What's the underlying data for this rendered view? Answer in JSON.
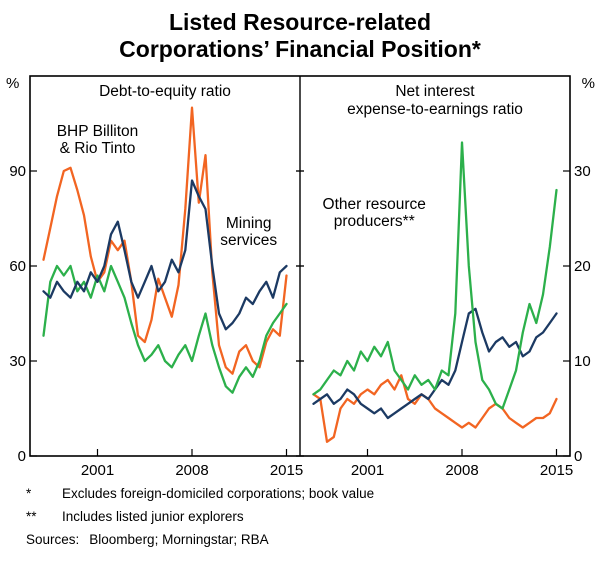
{
  "title": {
    "line1": "Listed Resource-related",
    "line2": "Corporations’ Financial Position*"
  },
  "footnotes": [
    {
      "marker": "*",
      "text": "Excludes foreign-domiciled corporations; book value"
    },
    {
      "marker": "**",
      "text": "Includes listed junior explorers"
    }
  ],
  "sources": {
    "label": "Sources:",
    "text": "Bloomberg; Morningstar; RBA"
  },
  "chart_data": {
    "type": "line",
    "x_domain": [
      1996,
      2016
    ],
    "x_ticks": [
      2001,
      2008,
      2015
    ],
    "x": [
      1997,
      1997.5,
      1998,
      1998.5,
      1999,
      1999.5,
      2000,
      2000.5,
      2001,
      2001.5,
      2002,
      2002.5,
      2003,
      2003.5,
      2004,
      2004.5,
      2005,
      2005.5,
      2006,
      2006.5,
      2007,
      2007.5,
      2008,
      2008.5,
      2009,
      2009.5,
      2010,
      2010.5,
      2011,
      2011.5,
      2012,
      2012.5,
      2013,
      2013.5,
      2014,
      2014.5,
      2015
    ],
    "panels": [
      {
        "title": "Debt-to-equity ratio",
        "title_lines": [
          "Debt-to-equity ratio"
        ],
        "ylabel": "%",
        "axis_side": "left",
        "ylim": [
          0,
          120
        ],
        "yticks": [
          0,
          30,
          60,
          90
        ],
        "series": [
          {
            "name": "BHP Billiton & Rio Tinto",
            "color": "#f26522",
            "values": [
              62,
              72,
              82,
              90,
              91,
              84,
              76,
              63,
              55,
              58,
              68,
              65,
              68,
              55,
              38,
              36,
              43,
              56,
              50,
              44,
              54,
              78,
              110,
              80,
              95,
              58,
              35,
              28,
              26,
              33,
              35,
              30,
              28,
              36,
              40,
              38,
              57
            ]
          },
          {
            "name": "Other resource producers",
            "color": "#2cb04b",
            "values": [
              38,
              55,
              60,
              57,
              60,
              52,
              55,
              50,
              57,
              52,
              60,
              55,
              50,
              42,
              35,
              30,
              32,
              35,
              30,
              28,
              32,
              35,
              30,
              38,
              45,
              35,
              28,
              22,
              20,
              25,
              28,
              25,
              30,
              38,
              42,
              45,
              48
            ]
          },
          {
            "name": "Mining services",
            "color": "#1c3a63",
            "values": [
              52,
              50,
              55,
              52,
              50,
              55,
              52,
              58,
              55,
              60,
              70,
              74,
              65,
              55,
              50,
              55,
              60,
              52,
              55,
              62,
              58,
              65,
              87,
              82,
              78,
              60,
              45,
              40,
              42,
              45,
              50,
              48,
              52,
              55,
              50,
              58,
              60
            ]
          }
        ],
        "annotations": [
          {
            "lines": [
              "BHP Billiton",
              "& Rio Tinto"
            ],
            "x": 2001,
            "y": 101,
            "color": "#f26522"
          },
          {
            "lines": [
              "Mining",
              "services"
            ],
            "x": 2012.2,
            "y": 72,
            "color": "#1c3a63"
          }
        ]
      },
      {
        "title": "Net interest expense-to-earnings ratio",
        "title_lines": [
          "Net interest",
          "expense-to-earnings ratio"
        ],
        "ylabel": "%",
        "axis_side": "right",
        "ylim": [
          0,
          40
        ],
        "yticks": [
          0,
          10,
          20,
          30
        ],
        "series": [
          {
            "name": "BHP Billiton & Rio Tinto",
            "color": "#f26522",
            "values": [
              6.5,
              6,
              1.5,
              2,
              5,
              6,
              5.5,
              6.5,
              7,
              6.5,
              7.5,
              8,
              7,
              8.5,
              6,
              5.5,
              6.5,
              6,
              5,
              4.5,
              4,
              3.5,
              3,
              3.5,
              3,
              4,
              5,
              5.5,
              5,
              4,
              3.5,
              3,
              3.5,
              4,
              4,
              4.5,
              6
            ]
          },
          {
            "name": "Mining services",
            "color": "#1c3a63",
            "values": [
              5.5,
              6,
              6.5,
              5.5,
              6,
              7,
              6.5,
              5.5,
              5,
              4.5,
              5,
              4,
              4.5,
              5,
              5.5,
              6,
              6.5,
              6,
              7,
              8,
              7.5,
              9,
              12,
              15,
              15.5,
              13,
              11,
              12,
              12.5,
              11.5,
              12,
              10.5,
              11,
              12.5,
              13,
              14,
              15
            ]
          },
          {
            "name": "Other resource producers",
            "color": "#2cb04b",
            "values": [
              6.5,
              7,
              8,
              9,
              8.5,
              10,
              9,
              11,
              10,
              11.5,
              10.5,
              12,
              9,
              8,
              7,
              8.5,
              7.5,
              8,
              7,
              9,
              8.5,
              15,
              33,
              20,
              12,
              8,
              7,
              5.5,
              5,
              7,
              9,
              13,
              16,
              14,
              17,
              22,
              28
            ]
          }
        ],
        "annotations": [
          {
            "lines": [
              "Other resource",
              "producers**"
            ],
            "x": 2001.5,
            "y": 26,
            "color": "#2cb04b"
          }
        ]
      }
    ]
  }
}
